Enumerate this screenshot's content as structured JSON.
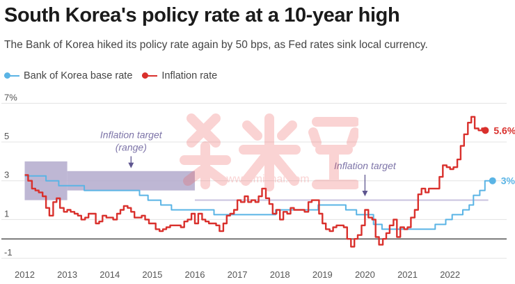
{
  "header": {
    "title": "South Korea's policy rate at a 10-year high",
    "subtitle": "The Bank of Korea hiked its policy rate again by 50 bps, as Fed rates sink local currency."
  },
  "legend": [
    {
      "label": "Bank of Korea base rate",
      "color": "#5ab4e5"
    },
    {
      "label": "Inflation rate",
      "color": "#d9302c"
    }
  ],
  "watermark": {
    "text": "www.mizhai.com"
  },
  "chart_data": {
    "type": "line",
    "ylim": [
      -1.5,
      7.3
    ],
    "xlim": [
      2011.55,
      2023.2
    ],
    "y_ticks": [
      {
        "v": 7,
        "label": "7%"
      },
      {
        "v": 5,
        "label": "5"
      },
      {
        "v": 3,
        "label": "3"
      },
      {
        "v": 1,
        "label": "1"
      },
      {
        "v": -1,
        "label": "-1"
      }
    ],
    "x_ticks": [
      2012,
      2013,
      2014,
      2015,
      2016,
      2017,
      2018,
      2019,
      2020,
      2021,
      2022
    ],
    "grid": true,
    "legend_position": "top-left",
    "annotations": [
      {
        "text_lines": [
          "Inflation target",
          "(range)"
        ],
        "x": 2014.5,
        "y": 5.2
      },
      {
        "text": "Inflation target",
        "x": 2020.0,
        "y": 3.6
      }
    ],
    "end_labels": [
      {
        "series": "Inflation rate",
        "text": "5.6%"
      },
      {
        "series": "Bank of Korea base rate",
        "text": "3%"
      }
    ],
    "inflation_target_band": [
      {
        "x0": 2012.0,
        "x1": 2013.0,
        "y0": 2.0,
        "y1": 4.0
      },
      {
        "x0": 2013.0,
        "x1": 2016.0,
        "y0": 2.5,
        "y1": 3.5
      }
    ],
    "inflation_target_line": {
      "x0": 2016.0,
      "x1": 2022.9,
      "y": 2.0
    },
    "series": [
      {
        "name": "Bank of Korea base rate",
        "color": "#5ab4e5",
        "step": true,
        "x": [
          2012.0,
          2012.5,
          2012.8,
          2013.4,
          2014.7,
          2014.9,
          2015.2,
          2015.45,
          2016.45,
          2017.9,
          2018.9,
          2019.55,
          2019.8,
          2020.2,
          2020.4,
          2021.65,
          2021.9,
          2022.05,
          2022.3,
          2022.45,
          2022.55,
          2022.7,
          2022.82,
          2023.0
        ],
        "values": [
          3.25,
          3.0,
          2.75,
          2.5,
          2.25,
          2.0,
          1.75,
          1.5,
          1.25,
          1.5,
          1.75,
          1.5,
          1.25,
          0.75,
          0.5,
          0.75,
          1.0,
          1.25,
          1.5,
          1.75,
          2.25,
          2.5,
          3.0,
          3.0
        ]
      },
      {
        "name": "Inflation rate",
        "color": "#d9302c",
        "step": true,
        "x": [
          2012.0,
          2012.08,
          2012.17,
          2012.25,
          2012.33,
          2012.42,
          2012.5,
          2012.58,
          2012.67,
          2012.75,
          2012.83,
          2012.92,
          2013.0,
          2013.08,
          2013.17,
          2013.25,
          2013.33,
          2013.42,
          2013.5,
          2013.58,
          2013.67,
          2013.75,
          2013.83,
          2013.92,
          2014.0,
          2014.08,
          2014.17,
          2014.25,
          2014.33,
          2014.42,
          2014.5,
          2014.58,
          2014.67,
          2014.75,
          2014.83,
          2014.92,
          2015.0,
          2015.08,
          2015.17,
          2015.25,
          2015.33,
          2015.42,
          2015.5,
          2015.58,
          2015.67,
          2015.75,
          2015.83,
          2015.92,
          2016.0,
          2016.08,
          2016.17,
          2016.25,
          2016.33,
          2016.42,
          2016.5,
          2016.58,
          2016.67,
          2016.75,
          2016.83,
          2016.92,
          2017.0,
          2017.08,
          2017.17,
          2017.25,
          2017.33,
          2017.42,
          2017.5,
          2017.58,
          2017.67,
          2017.75,
          2017.83,
          2017.92,
          2018.0,
          2018.08,
          2018.17,
          2018.25,
          2018.33,
          2018.42,
          2018.5,
          2018.58,
          2018.67,
          2018.75,
          2018.83,
          2018.92,
          2019.0,
          2019.08,
          2019.17,
          2019.25,
          2019.33,
          2019.42,
          2019.5,
          2019.58,
          2019.67,
          2019.75,
          2019.83,
          2019.92,
          2020.0,
          2020.08,
          2020.17,
          2020.25,
          2020.33,
          2020.42,
          2020.5,
          2020.58,
          2020.67,
          2020.75,
          2020.83,
          2020.92,
          2021.0,
          2021.08,
          2021.17,
          2021.25,
          2021.33,
          2021.42,
          2021.5,
          2021.58,
          2021.67,
          2021.75,
          2021.83,
          2021.92,
          2022.0,
          2022.08,
          2022.17,
          2022.25,
          2022.33,
          2022.42,
          2022.5,
          2022.58,
          2022.67,
          2022.75,
          2022.83
        ],
        "values": [
          3.3,
          3.0,
          2.6,
          2.5,
          2.4,
          2.2,
          1.6,
          1.2,
          1.9,
          2.1,
          1.6,
          1.4,
          1.5,
          1.4,
          1.3,
          1.2,
          1.0,
          1.1,
          1.3,
          1.3,
          0.8,
          0.9,
          1.2,
          1.1,
          1.1,
          1.0,
          1.3,
          1.5,
          1.7,
          1.6,
          1.4,
          1.1,
          1.1,
          1.2,
          1.0,
          0.8,
          0.8,
          0.5,
          0.4,
          0.5,
          0.6,
          0.7,
          0.7,
          0.7,
          0.6,
          0.9,
          1.0,
          1.3,
          0.8,
          1.3,
          1.0,
          0.9,
          0.8,
          0.8,
          0.7,
          0.4,
          0.8,
          1.2,
          1.3,
          1.5,
          2.0,
          1.9,
          2.2,
          1.9,
          2.0,
          1.9,
          2.2,
          2.6,
          2.1,
          1.8,
          1.3,
          1.5,
          1.0,
          1.4,
          1.3,
          1.6,
          1.5,
          1.5,
          1.5,
          1.4,
          1.9,
          2.0,
          2.0,
          1.3,
          0.8,
          0.5,
          0.4,
          0.6,
          0.7,
          0.7,
          0.6,
          0.0,
          -0.4,
          0.0,
          0.2,
          0.7,
          1.5,
          1.1,
          1.0,
          0.1,
          -0.3,
          0.0,
          0.3,
          0.7,
          1.0,
          0.1,
          0.6,
          0.5,
          0.6,
          1.1,
          1.5,
          2.3,
          2.6,
          2.4,
          2.6,
          2.6,
          2.6,
          3.2,
          3.8,
          3.7,
          3.6,
          3.7,
          4.1,
          4.8,
          5.4,
          6.0,
          6.3,
          5.7,
          5.6,
          5.7,
          5.6
        ]
      }
    ]
  }
}
